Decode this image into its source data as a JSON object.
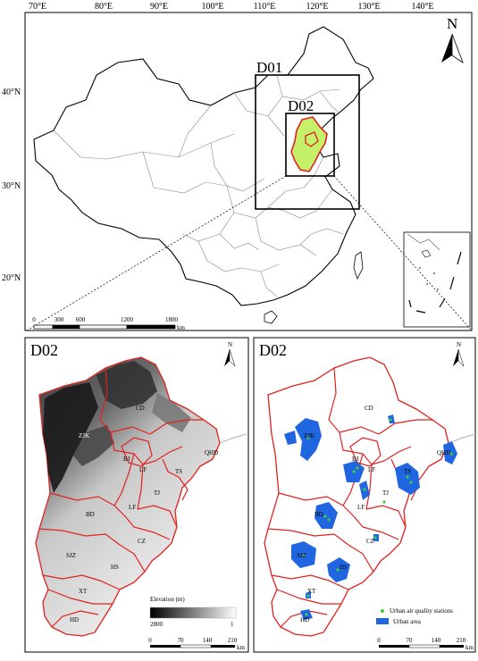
{
  "top_map": {
    "lon_labels": [
      "70°E",
      "80°E",
      "90°E",
      "100°E",
      "110°E",
      "120°E",
      "130°E",
      "140°E"
    ],
    "lat_labels": [
      "40°N",
      "30°N",
      "20°N"
    ],
    "domain_labels": [
      "D01",
      "D02"
    ],
    "north_label": "N",
    "scale_ticks": [
      "0",
      "300",
      "600",
      "1200",
      "1800"
    ],
    "scale_unit": "km"
  },
  "left_panel": {
    "title": "D02",
    "north_label": "N",
    "cities": [
      "ZJK",
      "CD",
      "QHD",
      "BJ",
      "LF",
      "TS",
      "TJ",
      "BD",
      "LF",
      "CZ",
      "SJZ",
      "HS",
      "XT",
      "HD"
    ],
    "legend": {
      "title": "Elevation (m)",
      "max": "2800",
      "min": "1"
    },
    "scale_ticks": [
      "0",
      "70",
      "140",
      "210"
    ],
    "scale_unit": "km"
  },
  "right_panel": {
    "title": "D02",
    "north_label": "N",
    "cities": [
      "CD",
      "ZJK",
      "QHD",
      "BJ",
      "LF",
      "TS",
      "TJ",
      "BD",
      "LF",
      "CZ",
      "SJZ",
      "HS",
      "XT",
      "HD"
    ],
    "legend": {
      "stations": "Urban air quality stations",
      "urban": "Urban area"
    },
    "scale_ticks": [
      "0",
      "70",
      "140",
      "210"
    ],
    "scale_unit": "km",
    "colors": {
      "urban": "#1f66e0",
      "station": "#3fcc3f",
      "boundary": "#e0211f"
    }
  }
}
